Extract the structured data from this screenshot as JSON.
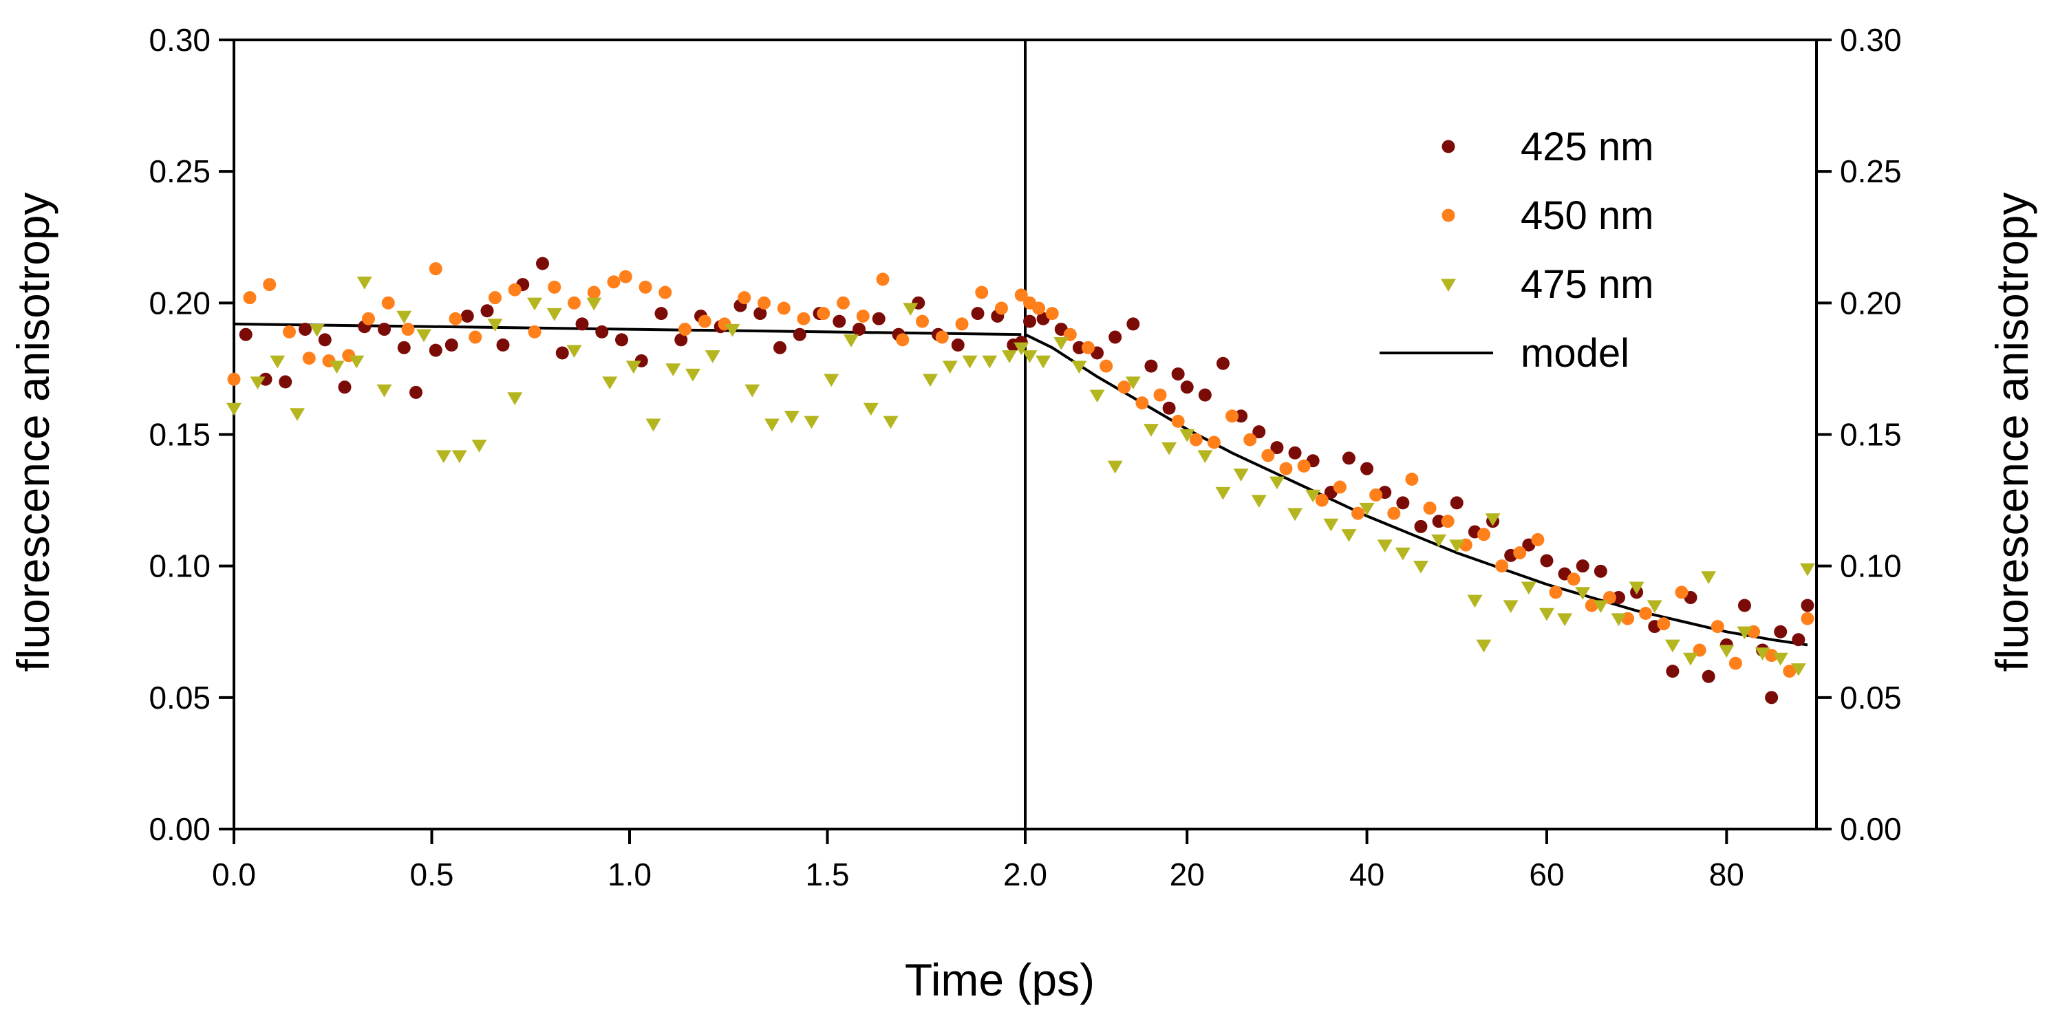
{
  "colors": {
    "s425": "#7a0b06",
    "s450": "#ff7f1a",
    "s475": "#b5b520",
    "model": "#000000"
  },
  "chart_data": {
    "type": "scatter",
    "title": "",
    "xlabel": "Time (ps)",
    "ylabel_left": "fluorescence anisotropy",
    "ylabel_right": "fluorescence anisotropy",
    "ylim": [
      0,
      0.3
    ],
    "y_ticks": [
      "0.00",
      "0.05",
      "0.10",
      "0.15",
      "0.20",
      "0.25",
      "0.30"
    ],
    "x_axis_break": "linear 0.0-2.0 ps segment on left, linear 2.0-90 ps segment on right",
    "x_segment_left": {
      "range": [
        0,
        2.0
      ],
      "ticks": [
        "0.0",
        "0.5",
        "1.0",
        "1.5",
        "2.0"
      ]
    },
    "x_segment_right": {
      "range": [
        2.0,
        90
      ],
      "ticks": [
        "20",
        "40",
        "60",
        "80"
      ]
    },
    "legend": [
      {
        "label": "425 nm",
        "series": "s425",
        "marker": "circle"
      },
      {
        "label": "450 nm",
        "series": "s450",
        "marker": "circle"
      },
      {
        "label": "475 nm",
        "series": "s475",
        "marker": "triangle-down"
      },
      {
        "label": "model",
        "series": "model",
        "marker": "line"
      }
    ],
    "series": [
      {
        "name": "425 nm",
        "key": "s425",
        "marker": "circle",
        "points": [
          [
            0.03,
            0.188
          ],
          [
            0.08,
            0.171
          ],
          [
            0.13,
            0.17
          ],
          [
            0.18,
            0.19
          ],
          [
            0.23,
            0.186
          ],
          [
            0.28,
            0.168
          ],
          [
            0.33,
            0.191
          ],
          [
            0.38,
            0.19
          ],
          [
            0.43,
            0.183
          ],
          [
            0.46,
            0.166
          ],
          [
            0.51,
            0.182
          ],
          [
            0.55,
            0.184
          ],
          [
            0.59,
            0.195
          ],
          [
            0.64,
            0.197
          ],
          [
            0.68,
            0.184
          ],
          [
            0.73,
            0.207
          ],
          [
            0.78,
            0.215
          ],
          [
            0.83,
            0.181
          ],
          [
            0.88,
            0.192
          ],
          [
            0.93,
            0.189
          ],
          [
            0.98,
            0.186
          ],
          [
            1.03,
            0.178
          ],
          [
            1.08,
            0.196
          ],
          [
            1.13,
            0.186
          ],
          [
            1.18,
            0.195
          ],
          [
            1.23,
            0.191
          ],
          [
            1.28,
            0.199
          ],
          [
            1.33,
            0.196
          ],
          [
            1.38,
            0.183
          ],
          [
            1.43,
            0.188
          ],
          [
            1.48,
            0.196
          ],
          [
            1.53,
            0.193
          ],
          [
            1.58,
            0.19
          ],
          [
            1.63,
            0.194
          ],
          [
            1.68,
            0.188
          ],
          [
            1.73,
            0.2
          ],
          [
            1.78,
            0.188
          ],
          [
            1.83,
            0.184
          ],
          [
            1.88,
            0.196
          ],
          [
            1.93,
            0.195
          ],
          [
            1.97,
            0.184
          ],
          [
            1.99,
            0.185
          ],
          [
            2.5,
            0.193
          ],
          [
            4,
            0.194
          ],
          [
            6,
            0.19
          ],
          [
            8,
            0.183
          ],
          [
            10,
            0.181
          ],
          [
            12,
            0.187
          ],
          [
            14,
            0.192
          ],
          [
            16,
            0.176
          ],
          [
            18,
            0.16
          ],
          [
            19,
            0.173
          ],
          [
            20,
            0.168
          ],
          [
            22,
            0.165
          ],
          [
            24,
            0.177
          ],
          [
            26,
            0.157
          ],
          [
            28,
            0.151
          ],
          [
            30,
            0.145
          ],
          [
            32,
            0.143
          ],
          [
            34,
            0.14
          ],
          [
            36,
            0.128
          ],
          [
            38,
            0.141
          ],
          [
            40,
            0.137
          ],
          [
            42,
            0.128
          ],
          [
            44,
            0.124
          ],
          [
            46,
            0.115
          ],
          [
            48,
            0.117
          ],
          [
            50,
            0.124
          ],
          [
            52,
            0.113
          ],
          [
            54,
            0.117
          ],
          [
            56,
            0.104
          ],
          [
            58,
            0.108
          ],
          [
            60,
            0.102
          ],
          [
            62,
            0.097
          ],
          [
            64,
            0.1
          ],
          [
            66,
            0.098
          ],
          [
            68,
            0.088
          ],
          [
            70,
            0.09
          ],
          [
            72,
            0.077
          ],
          [
            74,
            0.06
          ],
          [
            76,
            0.088
          ],
          [
            78,
            0.058
          ],
          [
            80,
            0.07
          ],
          [
            82,
            0.085
          ],
          [
            84,
            0.068
          ],
          [
            85,
            0.05
          ],
          [
            86,
            0.075
          ],
          [
            88,
            0.072
          ],
          [
            89,
            0.085
          ]
        ]
      },
      {
        "name": "450 nm",
        "key": "s450",
        "marker": "circle",
        "points": [
          [
            0.0,
            0.171
          ],
          [
            0.04,
            0.202
          ],
          [
            0.09,
            0.207
          ],
          [
            0.14,
            0.189
          ],
          [
            0.19,
            0.179
          ],
          [
            0.24,
            0.178
          ],
          [
            0.29,
            0.18
          ],
          [
            0.34,
            0.194
          ],
          [
            0.39,
            0.2
          ],
          [
            0.44,
            0.19
          ],
          [
            0.51,
            0.213
          ],
          [
            0.56,
            0.194
          ],
          [
            0.61,
            0.187
          ],
          [
            0.66,
            0.202
          ],
          [
            0.71,
            0.205
          ],
          [
            0.76,
            0.189
          ],
          [
            0.81,
            0.206
          ],
          [
            0.86,
            0.2
          ],
          [
            0.91,
            0.204
          ],
          [
            0.96,
            0.208
          ],
          [
            0.99,
            0.21
          ],
          [
            1.04,
            0.206
          ],
          [
            1.09,
            0.204
          ],
          [
            1.14,
            0.19
          ],
          [
            1.19,
            0.193
          ],
          [
            1.24,
            0.192
          ],
          [
            1.29,
            0.202
          ],
          [
            1.34,
            0.2
          ],
          [
            1.39,
            0.198
          ],
          [
            1.44,
            0.194
          ],
          [
            1.49,
            0.196
          ],
          [
            1.54,
            0.2
          ],
          [
            1.59,
            0.195
          ],
          [
            1.64,
            0.209
          ],
          [
            1.69,
            0.186
          ],
          [
            1.74,
            0.193
          ],
          [
            1.79,
            0.187
          ],
          [
            1.84,
            0.192
          ],
          [
            1.89,
            0.204
          ],
          [
            1.94,
            0.198
          ],
          [
            1.99,
            0.203
          ],
          [
            2.5,
            0.2
          ],
          [
            3.5,
            0.198
          ],
          [
            5,
            0.196
          ],
          [
            7,
            0.188
          ],
          [
            9,
            0.183
          ],
          [
            11,
            0.176
          ],
          [
            13,
            0.168
          ],
          [
            15,
            0.162
          ],
          [
            17,
            0.165
          ],
          [
            19,
            0.155
          ],
          [
            21,
            0.148
          ],
          [
            23,
            0.147
          ],
          [
            25,
            0.157
          ],
          [
            27,
            0.148
          ],
          [
            29,
            0.142
          ],
          [
            31,
            0.137
          ],
          [
            33,
            0.138
          ],
          [
            35,
            0.125
          ],
          [
            37,
            0.13
          ],
          [
            39,
            0.12
          ],
          [
            41,
            0.127
          ],
          [
            43,
            0.12
          ],
          [
            45,
            0.133
          ],
          [
            47,
            0.122
          ],
          [
            49,
            0.117
          ],
          [
            51,
            0.108
          ],
          [
            53,
            0.112
          ],
          [
            55,
            0.1
          ],
          [
            57,
            0.105
          ],
          [
            59,
            0.11
          ],
          [
            61,
            0.09
          ],
          [
            63,
            0.095
          ],
          [
            65,
            0.085
          ],
          [
            67,
            0.088
          ],
          [
            69,
            0.08
          ],
          [
            71,
            0.082
          ],
          [
            73,
            0.078
          ],
          [
            75,
            0.09
          ],
          [
            77,
            0.068
          ],
          [
            79,
            0.077
          ],
          [
            81,
            0.063
          ],
          [
            83,
            0.075
          ],
          [
            85,
            0.066
          ],
          [
            87,
            0.06
          ],
          [
            89,
            0.08
          ]
        ]
      },
      {
        "name": "475 nm",
        "key": "s475",
        "marker": "triangle-down",
        "points": [
          [
            0.0,
            0.16
          ],
          [
            0.06,
            0.17
          ],
          [
            0.11,
            0.178
          ],
          [
            0.16,
            0.158
          ],
          [
            0.21,
            0.19
          ],
          [
            0.26,
            0.176
          ],
          [
            0.31,
            0.178
          ],
          [
            0.33,
            0.208
          ],
          [
            0.38,
            0.167
          ],
          [
            0.43,
            0.195
          ],
          [
            0.48,
            0.188
          ],
          [
            0.53,
            0.142
          ],
          [
            0.57,
            0.142
          ],
          [
            0.62,
            0.146
          ],
          [
            0.66,
            0.192
          ],
          [
            0.71,
            0.164
          ],
          [
            0.76,
            0.2
          ],
          [
            0.81,
            0.196
          ],
          [
            0.86,
            0.182
          ],
          [
            0.91,
            0.2
          ],
          [
            0.95,
            0.17
          ],
          [
            1.01,
            0.176
          ],
          [
            1.06,
            0.154
          ],
          [
            1.11,
            0.175
          ],
          [
            1.16,
            0.173
          ],
          [
            1.21,
            0.18
          ],
          [
            1.26,
            0.19
          ],
          [
            1.31,
            0.167
          ],
          [
            1.36,
            0.154
          ],
          [
            1.41,
            0.157
          ],
          [
            1.46,
            0.155
          ],
          [
            1.51,
            0.171
          ],
          [
            1.56,
            0.186
          ],
          [
            1.61,
            0.16
          ],
          [
            1.66,
            0.155
          ],
          [
            1.71,
            0.198
          ],
          [
            1.76,
            0.171
          ],
          [
            1.81,
            0.176
          ],
          [
            1.86,
            0.178
          ],
          [
            1.91,
            0.178
          ],
          [
            1.96,
            0.18
          ],
          [
            1.99,
            0.183
          ],
          [
            2.5,
            0.18
          ],
          [
            4,
            0.178
          ],
          [
            6,
            0.185
          ],
          [
            8,
            0.176
          ],
          [
            10,
            0.165
          ],
          [
            12,
            0.138
          ],
          [
            14,
            0.17
          ],
          [
            16,
            0.152
          ],
          [
            18,
            0.145
          ],
          [
            20,
            0.15
          ],
          [
            22,
            0.142
          ],
          [
            24,
            0.128
          ],
          [
            26,
            0.135
          ],
          [
            28,
            0.125
          ],
          [
            30,
            0.132
          ],
          [
            32,
            0.12
          ],
          [
            34,
            0.127
          ],
          [
            36,
            0.116
          ],
          [
            38,
            0.112
          ],
          [
            40,
            0.122
          ],
          [
            42,
            0.108
          ],
          [
            44,
            0.105
          ],
          [
            46,
            0.1
          ],
          [
            48,
            0.11
          ],
          [
            50,
            0.108
          ],
          [
            52,
            0.087
          ],
          [
            53,
            0.07
          ],
          [
            54,
            0.118
          ],
          [
            56,
            0.085
          ],
          [
            58,
            0.092
          ],
          [
            60,
            0.082
          ],
          [
            62,
            0.08
          ],
          [
            64,
            0.09
          ],
          [
            66,
            0.085
          ],
          [
            68,
            0.08
          ],
          [
            70,
            0.092
          ],
          [
            72,
            0.085
          ],
          [
            74,
            0.07
          ],
          [
            76,
            0.065
          ],
          [
            78,
            0.096
          ],
          [
            80,
            0.068
          ],
          [
            82,
            0.075
          ],
          [
            84,
            0.067
          ],
          [
            86,
            0.065
          ],
          [
            88,
            0.061
          ],
          [
            89,
            0.099
          ]
        ]
      },
      {
        "name": "model",
        "key": "model",
        "marker": "line",
        "points": [
          [
            0.0,
            0.192
          ],
          [
            0.5,
            0.191
          ],
          [
            1.0,
            0.19
          ],
          [
            1.5,
            0.189
          ],
          [
            1.99,
            0.188
          ],
          [
            2.0,
            0.188
          ],
          [
            5,
            0.183
          ],
          [
            10,
            0.172
          ],
          [
            15,
            0.162
          ],
          [
            20,
            0.152
          ],
          [
            25,
            0.143
          ],
          [
            30,
            0.135
          ],
          [
            35,
            0.127
          ],
          [
            40,
            0.119
          ],
          [
            45,
            0.112
          ],
          [
            50,
            0.105
          ],
          [
            55,
            0.099
          ],
          [
            60,
            0.093
          ],
          [
            65,
            0.088
          ],
          [
            70,
            0.083
          ],
          [
            75,
            0.079
          ],
          [
            80,
            0.075
          ],
          [
            85,
            0.072
          ],
          [
            89,
            0.07
          ]
        ]
      }
    ]
  }
}
